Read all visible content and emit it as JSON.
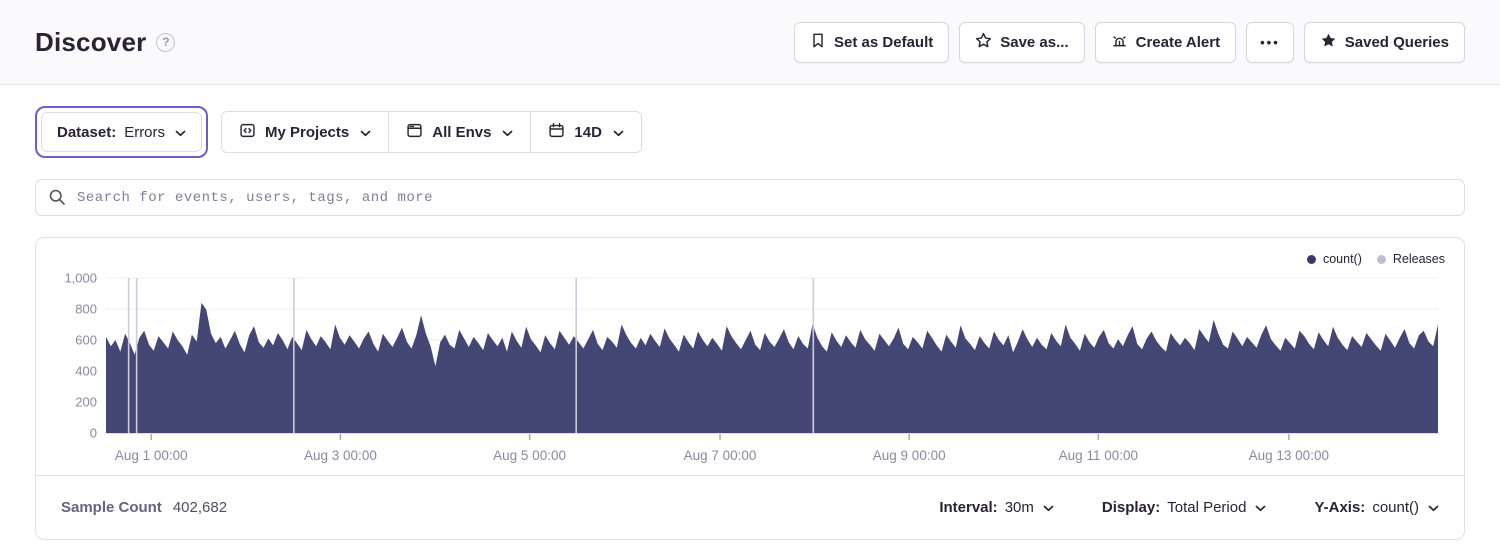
{
  "header": {
    "title": "Discover",
    "help_icon": "question-mark",
    "actions": [
      {
        "label": "Set as Default",
        "icon": "bookmark-icon"
      },
      {
        "label": "Save as...",
        "icon": "star-outline-icon"
      },
      {
        "label": "Create Alert",
        "icon": "siren-icon"
      },
      {
        "label": "•••",
        "icon": "ellipsis-icon"
      },
      {
        "label": "Saved Queries",
        "icon": "star-filled-icon"
      }
    ]
  },
  "filters": {
    "dataset": {
      "label": "Dataset:",
      "value": "Errors",
      "highlight_color": "#6C5FC7"
    },
    "projects": {
      "label": "My Projects",
      "icon": "project-icon"
    },
    "environments": {
      "label": "All Envs",
      "icon": "window-icon"
    },
    "date_range": {
      "label": "14D",
      "icon": "calendar-icon"
    }
  },
  "search": {
    "placeholder": "Search for events, users, tags, and more"
  },
  "chart_data": {
    "type": "area",
    "title": "",
    "xlabel": "",
    "ylabel": "",
    "ylim": [
      0,
      1000
    ],
    "y_ticks": [
      {
        "value": 0,
        "label": "0"
      },
      {
        "value": 200,
        "label": "200"
      },
      {
        "value": 400,
        "label": "400"
      },
      {
        "value": 600,
        "label": "600"
      },
      {
        "value": 800,
        "label": "800"
      },
      {
        "value": 1000,
        "label": "1,000"
      }
    ],
    "x_ticks": [
      {
        "label": "Aug 1 00:00",
        "pos": 0.034
      },
      {
        "label": "Aug 3 00:00",
        "pos": 0.176
      },
      {
        "label": "Aug 5 00:00",
        "pos": 0.318
      },
      {
        "label": "Aug 7 00:00",
        "pos": 0.461
      },
      {
        "label": "Aug 9 00:00",
        "pos": 0.603
      },
      {
        "label": "Aug 11 00:00",
        "pos": 0.745
      },
      {
        "label": "Aug 13 00:00",
        "pos": 0.888
      }
    ],
    "grid": true,
    "legend_position": "top-right",
    "legend": [
      {
        "label": "count()",
        "color": "#3B3768"
      },
      {
        "label": "Releases",
        "color": "#C2BCD3"
      }
    ],
    "series_color": "#444674",
    "release_line_color": "#CFCBDA",
    "releases": {
      "positions": [
        0.017,
        0.023,
        0.141,
        0.353,
        0.531
      ]
    },
    "series": [
      {
        "name": "count()",
        "values": [
          620,
          560,
          600,
          525,
          640,
          580,
          505,
          615,
          660,
          570,
          530,
          625,
          585,
          545,
          655,
          600,
          560,
          505,
          635,
          590,
          840,
          795,
          640,
          580,
          620,
          545,
          600,
          660,
          575,
          520,
          630,
          690,
          585,
          550,
          610,
          565,
          645,
          600,
          540,
          620,
          580,
          535,
          665,
          605,
          560,
          625,
          585,
          540,
          700,
          615,
          570,
          630,
          590,
          545,
          610,
          655,
          575,
          525,
          640,
          595,
          555,
          615,
          680,
          590,
          545,
          630,
          760,
          640,
          560,
          430,
          585,
          635,
          570,
          545,
          665,
          610,
          555,
          620,
          580,
          535,
          645,
          600,
          560,
          615,
          525,
          655,
          595,
          550,
          685,
          605,
          565,
          520,
          630,
          580,
          540,
          660,
          615,
          570,
          625,
          585,
          545,
          605,
          665,
          575,
          535,
          620,
          590,
          550,
          700,
          630,
          580,
          545,
          615,
          565,
          640,
          595,
          555,
          675,
          610,
          570,
          525,
          635,
          585,
          545,
          655,
          600,
          560,
          615,
          575,
          530,
          690,
          625,
          580,
          540,
          600,
          660,
          570,
          535,
          645,
          590,
          555,
          610,
          670,
          585,
          540,
          625,
          575,
          545,
          705,
          615,
          560,
          525,
          650,
          595,
          555,
          630,
          585,
          550,
          665,
          605,
          570,
          530,
          640,
          600,
          560,
          610,
          680,
          575,
          540,
          620,
          585,
          545,
          660,
          615,
          565,
          525,
          635,
          590,
          550,
          695,
          610,
          575,
          535,
          625,
          580,
          545,
          655,
          600,
          565,
          630,
          520,
          590,
          670,
          605,
          555,
          615,
          570,
          540,
          645,
          595,
          560,
          700,
          615,
          575,
          530,
          640,
          585,
          550,
          620,
          665,
          580,
          545,
          605,
          560,
          630,
          690,
          575,
          540,
          610,
          655,
          595,
          555,
          525,
          645,
          600,
          565,
          615,
          580,
          535,
          670,
          625,
          585,
          730,
          640,
          570,
          545,
          655,
          610,
          560,
          620,
          585,
          550,
          635,
          695,
          605,
          565,
          530,
          615,
          580,
          545,
          660,
          625,
          575,
          540,
          650,
          600,
          560,
          685,
          615,
          570,
          535,
          625,
          590,
          555,
          645,
          605,
          565,
          530,
          640,
          595,
          550,
          615,
          670,
          580,
          545,
          630,
          660,
          590,
          560,
          700
        ]
      }
    ]
  },
  "card_footer": {
    "sample_count_label": "Sample Count",
    "sample_count_value": "402,682",
    "controls": [
      {
        "label": "Interval:",
        "value": "30m"
      },
      {
        "label": "Display:",
        "value": "Total Period"
      },
      {
        "label": "Y-Axis:",
        "value": "count()"
      }
    ]
  }
}
